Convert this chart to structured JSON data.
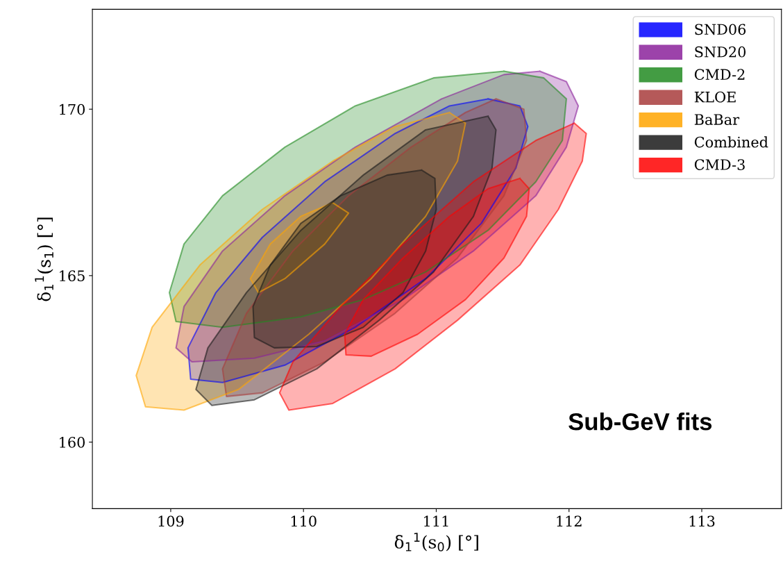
{
  "chart_data": {
    "type": "area",
    "xlabel": "δ$_{1}$$^{1}$(s$_{0}$) [°]",
    "ylabel": "δ$_{1}$$^{1}$(s$_{1}$) [°]",
    "xlim": [
      108.41,
      113.6
    ],
    "ylim": [
      158,
      173
    ],
    "xticks": [
      109,
      110,
      111,
      112,
      113
    ],
    "yticks": [
      160,
      165,
      170
    ],
    "grid": false,
    "legend": "top right",
    "annotations": [
      "Sub-GeV fits"
    ],
    "series": [
      {
        "name": "SND06",
        "color": "#0000ff",
        "x": [
          111.39,
          111.63,
          111.69,
          111.6,
          111.34,
          110.92,
          110.39,
          109.86,
          109.39,
          109.15,
          109.13,
          109.34,
          109.69,
          110.16,
          110.69,
          111.1
        ],
        "values": [
          170.31,
          170.1,
          169.48,
          168.23,
          166.57,
          164.91,
          163.45,
          162.31,
          161.79,
          161.89,
          162.83,
          164.49,
          166.15,
          167.82,
          169.27,
          170.1
        ]
      },
      {
        "name": "SND20",
        "color": "#8b229b",
        "x": [
          111.78,
          111.98,
          112.07,
          111.98,
          111.75,
          111.28,
          110.75,
          110.16,
          109.63,
          109.16,
          109.04,
          109.1,
          109.39,
          109.86,
          110.39,
          111.04,
          111.51
        ],
        "values": [
          171.14,
          170.83,
          170.1,
          168.86,
          167.4,
          165.74,
          164.28,
          163.04,
          162.52,
          162.41,
          162.83,
          164.07,
          165.74,
          167.4,
          168.86,
          170.31,
          171.04
        ]
      },
      {
        "name": "CMD-2",
        "color": "#228b22",
        "x": [
          111.51,
          111.81,
          111.98,
          111.95,
          111.75,
          111.39,
          110.92,
          110.45,
          109.98,
          109.39,
          109.04,
          108.99,
          109.1,
          109.39,
          109.86,
          110.39,
          110.98
        ],
        "values": [
          171.14,
          170.94,
          170.31,
          169.06,
          167.82,
          166.36,
          165.11,
          164.28,
          163.76,
          163.45,
          163.62,
          164.49,
          165.95,
          167.4,
          168.86,
          170.1,
          170.94
        ]
      },
      {
        "name": "KLOE",
        "color": "#a83c3c",
        "x": [
          111.45,
          111.66,
          111.68,
          111.51,
          111.16,
          110.69,
          110.16,
          109.69,
          109.42,
          109.39,
          109.57,
          109.92,
          110.34,
          110.81,
          111.22
        ],
        "values": [
          170.31,
          170.0,
          169.06,
          167.4,
          165.53,
          163.87,
          162.41,
          161.48,
          161.37,
          162.2,
          163.87,
          165.74,
          167.4,
          168.86,
          169.9
        ]
      },
      {
        "name": "BaBar",
        "color": "#ffa500",
        "x": [
          111.1,
          111.22,
          111.16,
          110.92,
          110.51,
          110.04,
          109.51,
          109.1,
          108.81,
          108.74,
          108.86,
          109.22,
          109.69,
          110.22,
          110.69,
          null,
          110.22,
          110.34,
          110.16,
          109.86,
          109.66,
          109.6,
          109.75,
          109.98
        ],
        "values": [
          169.9,
          169.58,
          168.44,
          166.78,
          164.91,
          163.24,
          161.58,
          160.96,
          161.06,
          162.0,
          163.45,
          165.32,
          166.99,
          168.44,
          169.48,
          null,
          167.19,
          166.88,
          165.95,
          164.91,
          164.49,
          164.91,
          165.95,
          166.78
        ]
      },
      {
        "name": "Combined",
        "color": "#1a1a1a",
        "x": [
          111.39,
          111.45,
          111.42,
          111.28,
          110.98,
          110.57,
          110.1,
          109.63,
          109.31,
          109.19,
          109.28,
          109.57,
          109.98,
          110.45,
          110.92,
          null,
          110.89,
          110.99,
          111.0,
          110.92,
          110.75,
          110.45,
          110.1,
          109.78,
          109.63,
          109.62,
          109.75,
          109.98,
          110.28,
          110.63
        ],
        "values": [
          169.79,
          169.38,
          168.23,
          166.78,
          165.11,
          163.66,
          162.2,
          161.27,
          161.1,
          161.58,
          162.83,
          164.49,
          166.36,
          168.02,
          169.38,
          null,
          168.17,
          167.92,
          166.99,
          165.74,
          164.49,
          163.45,
          162.87,
          162.83,
          163.14,
          164.07,
          165.32,
          166.57,
          167.4,
          168.02
        ]
      },
      {
        "name": "CMD-3",
        "color": "#ff0000",
        "x": [
          112.04,
          112.13,
          112.1,
          111.92,
          111.63,
          111.16,
          110.69,
          110.22,
          109.89,
          109.82,
          109.92,
          110.28,
          110.75,
          111.28,
          111.75,
          null,
          111.63,
          111.7,
          111.68,
          111.51,
          111.22,
          110.86,
          110.51,
          110.32,
          110.31,
          110.45,
          110.75,
          111.1,
          111.39
        ],
        "values": [
          169.58,
          169.27,
          168.44,
          166.99,
          165.32,
          163.66,
          162.2,
          161.16,
          160.96,
          161.48,
          162.41,
          164.07,
          165.95,
          167.82,
          169.06,
          null,
          167.92,
          167.61,
          166.78,
          165.53,
          164.28,
          163.24,
          162.58,
          162.62,
          163.24,
          164.28,
          165.53,
          166.78,
          167.61
        ]
      }
    ]
  }
}
